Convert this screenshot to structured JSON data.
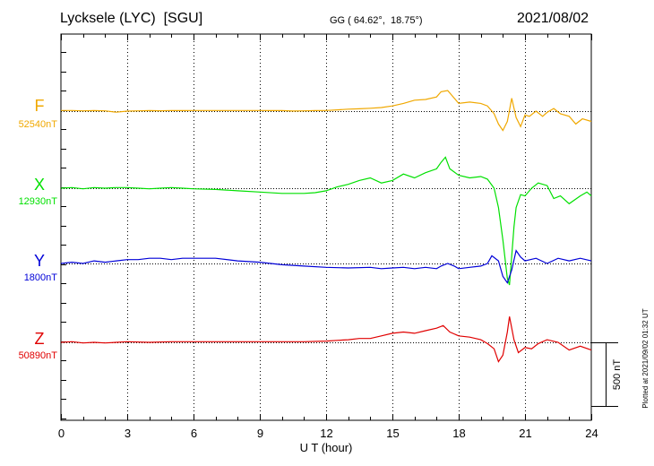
{
  "header": {
    "station": "Lycksele (LYC)  [SGU]",
    "coords": "GG ( 64.62°,  18.75°)",
    "date": "2021/08/02"
  },
  "plotted_note": "Plotted at 2021/09/02 01:32 UT",
  "chart_data": {
    "type": "line",
    "xlabel": "U T (hour)",
    "xlim": [
      0,
      24
    ],
    "xticks": [
      "0",
      "3",
      "6",
      "9",
      "12",
      "15",
      "18",
      "21",
      "24"
    ],
    "grid": true,
    "scale_bar": {
      "label": "500 nT",
      "value_nT": 500
    },
    "series": [
      {
        "name": "F",
        "baseline_label": "52540nT",
        "color": "#f0a800",
        "points": [
          [
            0.0,
            5
          ],
          [
            0.5,
            5
          ],
          [
            1.0,
            2
          ],
          [
            1.5,
            4
          ],
          [
            2.0,
            2
          ],
          [
            2.5,
            -8
          ],
          [
            3.0,
            0
          ],
          [
            3.5,
            2
          ],
          [
            4.0,
            4
          ],
          [
            4.5,
            3
          ],
          [
            5.0,
            5
          ],
          [
            5.5,
            4
          ],
          [
            6.0,
            5
          ],
          [
            7.0,
            5
          ],
          [
            8.5,
            5
          ],
          [
            9.0,
            5
          ],
          [
            9.5,
            4
          ],
          [
            10.0,
            4
          ],
          [
            10.5,
            1
          ],
          [
            11.0,
            2
          ],
          [
            11.5,
            4
          ],
          [
            12.0,
            5
          ],
          [
            12.5,
            10
          ],
          [
            13.0,
            15
          ],
          [
            13.5,
            18
          ],
          [
            14.0,
            22
          ],
          [
            14.5,
            28
          ],
          [
            15.0,
            40
          ],
          [
            15.5,
            60
          ],
          [
            16.0,
            85
          ],
          [
            16.5,
            90
          ],
          [
            17.0,
            110
          ],
          [
            17.2,
            150
          ],
          [
            17.5,
            160
          ],
          [
            17.8,
            100
          ],
          [
            18.0,
            60
          ],
          [
            18.5,
            70
          ],
          [
            19.0,
            60
          ],
          [
            19.3,
            40
          ],
          [
            19.6,
            -20
          ],
          [
            19.8,
            -100
          ],
          [
            20.0,
            -150
          ],
          [
            20.2,
            -80
          ],
          [
            20.4,
            100
          ],
          [
            20.6,
            -50
          ],
          [
            20.8,
            -120
          ],
          [
            21.0,
            -30
          ],
          [
            21.2,
            -40
          ],
          [
            21.5,
            0
          ],
          [
            21.8,
            -40
          ],
          [
            22.0,
            -10
          ],
          [
            22.3,
            20
          ],
          [
            22.6,
            -20
          ],
          [
            23.0,
            -40
          ],
          [
            23.3,
            -100
          ],
          [
            23.6,
            -60
          ],
          [
            24.0,
            -80
          ]
        ]
      },
      {
        "name": "X",
        "baseline_label": "12930nT",
        "color": "#00e000",
        "points": [
          [
            0.0,
            0
          ],
          [
            0.5,
            5
          ],
          [
            1.0,
            -5
          ],
          [
            1.5,
            5
          ],
          [
            2.0,
            0
          ],
          [
            2.5,
            5
          ],
          [
            3.0,
            5
          ],
          [
            3.5,
            0
          ],
          [
            4.0,
            -5
          ],
          [
            4.5,
            0
          ],
          [
            5.0,
            5
          ],
          [
            5.5,
            0
          ],
          [
            6.0,
            -5
          ],
          [
            7.0,
            -10
          ],
          [
            8.0,
            -20
          ],
          [
            9.0,
            -30
          ],
          [
            10.0,
            -40
          ],
          [
            11.0,
            -40
          ],
          [
            11.5,
            -35
          ],
          [
            12.0,
            -20
          ],
          [
            12.5,
            10
          ],
          [
            13.0,
            30
          ],
          [
            13.5,
            60
          ],
          [
            14.0,
            80
          ],
          [
            14.5,
            40
          ],
          [
            15.0,
            60
          ],
          [
            15.5,
            110
          ],
          [
            16.0,
            80
          ],
          [
            16.5,
            120
          ],
          [
            17.0,
            150
          ],
          [
            17.2,
            200
          ],
          [
            17.4,
            240
          ],
          [
            17.6,
            150
          ],
          [
            18.0,
            100
          ],
          [
            18.5,
            80
          ],
          [
            19.0,
            90
          ],
          [
            19.3,
            70
          ],
          [
            19.6,
            0
          ],
          [
            19.8,
            -150
          ],
          [
            20.0,
            -400
          ],
          [
            20.2,
            -700
          ],
          [
            20.3,
            -750
          ],
          [
            20.5,
            -300
          ],
          [
            20.6,
            -150
          ],
          [
            20.8,
            -50
          ],
          [
            21.0,
            -60
          ],
          [
            21.3,
            0
          ],
          [
            21.6,
            40
          ],
          [
            22.0,
            20
          ],
          [
            22.3,
            -80
          ],
          [
            22.6,
            -60
          ],
          [
            23.0,
            -120
          ],
          [
            23.5,
            -60
          ],
          [
            23.8,
            -30
          ],
          [
            24.0,
            -60
          ]
        ]
      },
      {
        "name": "Y",
        "baseline_label": "1800nT",
        "color": "#0000d8",
        "points": [
          [
            0.0,
            0
          ],
          [
            0.5,
            10
          ],
          [
            1.0,
            0
          ],
          [
            1.5,
            20
          ],
          [
            2.0,
            10
          ],
          [
            2.5,
            20
          ],
          [
            3.0,
            30
          ],
          [
            3.5,
            30
          ],
          [
            4.0,
            40
          ],
          [
            4.5,
            40
          ],
          [
            5.0,
            30
          ],
          [
            5.5,
            40
          ],
          [
            6.0,
            40
          ],
          [
            7.0,
            40
          ],
          [
            8.0,
            20
          ],
          [
            9.0,
            10
          ],
          [
            10.0,
            -10
          ],
          [
            11.0,
            -20
          ],
          [
            12.0,
            -30
          ],
          [
            13.0,
            -35
          ],
          [
            14.0,
            -30
          ],
          [
            14.5,
            -40
          ],
          [
            15.0,
            -35
          ],
          [
            15.5,
            -30
          ],
          [
            16.0,
            -40
          ],
          [
            16.5,
            -30
          ],
          [
            17.0,
            -40
          ],
          [
            17.2,
            -20
          ],
          [
            17.5,
            0
          ],
          [
            17.8,
            -20
          ],
          [
            18.0,
            -40
          ],
          [
            18.5,
            -30
          ],
          [
            19.0,
            -20
          ],
          [
            19.3,
            0
          ],
          [
            19.5,
            60
          ],
          [
            19.8,
            20
          ],
          [
            20.0,
            -100
          ],
          [
            20.2,
            -150
          ],
          [
            20.4,
            -50
          ],
          [
            20.6,
            100
          ],
          [
            20.8,
            50
          ],
          [
            21.0,
            20
          ],
          [
            21.5,
            40
          ],
          [
            22.0,
            0
          ],
          [
            22.5,
            40
          ],
          [
            23.0,
            20
          ],
          [
            23.5,
            40
          ],
          [
            24.0,
            20
          ]
        ]
      },
      {
        "name": "Z",
        "baseline_label": "50890nT",
        "color": "#e00000",
        "points": [
          [
            0.0,
            0
          ],
          [
            0.5,
            5
          ],
          [
            1.0,
            -5
          ],
          [
            1.5,
            0
          ],
          [
            2.0,
            -5
          ],
          [
            2.5,
            0
          ],
          [
            3.0,
            5
          ],
          [
            4.0,
            0
          ],
          [
            5.0,
            5
          ],
          [
            6.0,
            5
          ],
          [
            7.0,
            5
          ],
          [
            8.0,
            5
          ],
          [
            9.0,
            5
          ],
          [
            10.0,
            5
          ],
          [
            11.0,
            5
          ],
          [
            12.0,
            10
          ],
          [
            12.5,
            15
          ],
          [
            13.0,
            20
          ],
          [
            13.5,
            30
          ],
          [
            14.0,
            30
          ],
          [
            14.5,
            50
          ],
          [
            15.0,
            70
          ],
          [
            15.5,
            80
          ],
          [
            16.0,
            70
          ],
          [
            16.5,
            90
          ],
          [
            17.0,
            110
          ],
          [
            17.3,
            130
          ],
          [
            17.6,
            80
          ],
          [
            18.0,
            50
          ],
          [
            18.5,
            40
          ],
          [
            19.0,
            20
          ],
          [
            19.3,
            -10
          ],
          [
            19.6,
            -50
          ],
          [
            19.8,
            -150
          ],
          [
            20.0,
            -100
          ],
          [
            20.2,
            80
          ],
          [
            20.3,
            200
          ],
          [
            20.5,
            20
          ],
          [
            20.7,
            -80
          ],
          [
            21.0,
            -40
          ],
          [
            21.3,
            -50
          ],
          [
            21.6,
            -10
          ],
          [
            22.0,
            20
          ],
          [
            22.5,
            0
          ],
          [
            23.0,
            -60
          ],
          [
            23.5,
            -30
          ],
          [
            24.0,
            -60
          ]
        ]
      }
    ]
  }
}
